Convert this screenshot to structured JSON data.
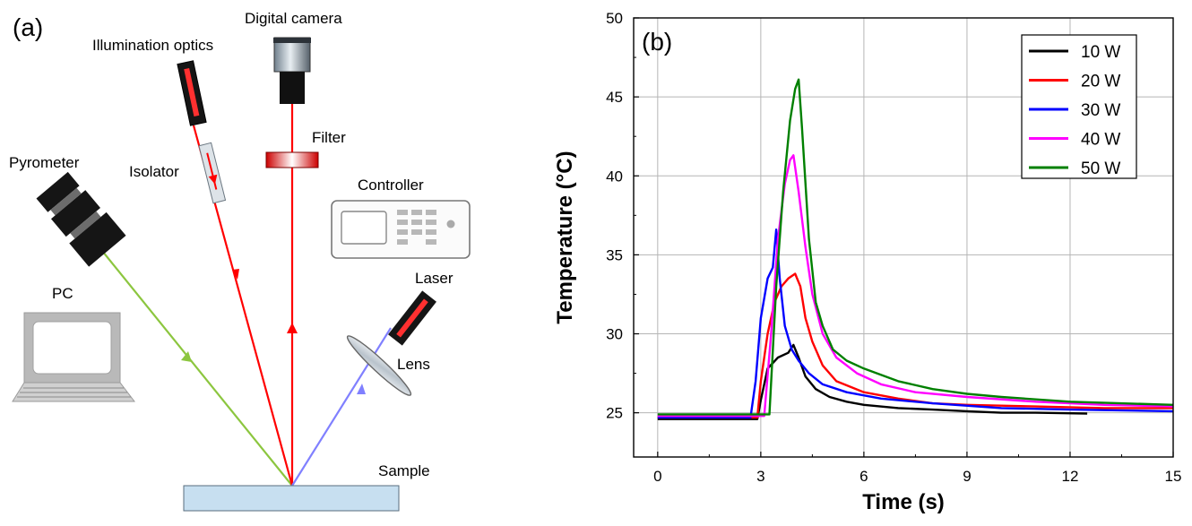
{
  "panel_a": {
    "label": "(a)",
    "components": {
      "digital_camera": "Digital camera",
      "illumination_optics": "Illumination optics",
      "filter": "Filter",
      "isolator": "Isolator",
      "pyrometer": "Pyrometer",
      "controller": "Controller",
      "laser": "Laser",
      "pc": "PC",
      "lens": "Lens",
      "sample": "Sample"
    },
    "colors": {
      "illumination_beam": "#ff0000",
      "camera_beam": "#ff0000",
      "pyrometer_beam": "#8cc63f",
      "laser_beam": "#8080ff",
      "sample_fill": "#c7dff0"
    }
  },
  "panel_b": {
    "label": "(b)"
  },
  "chart_data": {
    "type": "line",
    "xlabel": "Time (s)",
    "ylabel": "Temperature (°C)",
    "xlim": [
      -0.7,
      15
    ],
    "ylim": [
      22.2,
      50
    ],
    "xticks": [
      0,
      3,
      6,
      9,
      12,
      15
    ],
    "yticks": [
      25,
      30,
      35,
      40,
      45,
      50
    ],
    "grid": true,
    "legend_position": "top-right",
    "series": [
      {
        "name": "10 W",
        "color": "#000000",
        "x": [
          0,
          2.9,
          3.0,
          3.2,
          3.5,
          3.8,
          3.95,
          4.1,
          4.3,
          4.6,
          5.0,
          5.5,
          6.0,
          7.0,
          8.0,
          9.0,
          10.0,
          11.0,
          12.5
        ],
        "y": [
          24.6,
          24.6,
          25.8,
          27.8,
          28.5,
          28.8,
          29.3,
          28.5,
          27.3,
          26.5,
          26.0,
          25.7,
          25.5,
          25.3,
          25.2,
          25.1,
          25.0,
          25.0,
          24.95
        ]
      },
      {
        "name": "20 W",
        "color": "#ff0000",
        "x": [
          0,
          2.9,
          3.0,
          3.2,
          3.4,
          3.6,
          3.8,
          4.0,
          4.15,
          4.3,
          4.5,
          4.8,
          5.2,
          6.0,
          7.0,
          8.0,
          9.0,
          11.0,
          13.0,
          15.0
        ],
        "y": [
          24.7,
          24.7,
          27.0,
          30.0,
          32.0,
          33.0,
          33.5,
          33.8,
          33.0,
          31.0,
          29.5,
          28.0,
          27.0,
          26.3,
          25.9,
          25.6,
          25.5,
          25.4,
          25.3,
          25.3
        ]
      },
      {
        "name": "30 W",
        "color": "#0000ff",
        "x": [
          0,
          2.7,
          2.85,
          3.0,
          3.2,
          3.35,
          3.45,
          3.55,
          3.7,
          3.9,
          4.1,
          4.4,
          4.8,
          5.5,
          6.5,
          8.0,
          10.0,
          12.0,
          15.0
        ],
        "y": [
          24.7,
          24.7,
          27.0,
          31.0,
          33.5,
          34.2,
          36.6,
          33.5,
          30.5,
          29.0,
          28.3,
          27.5,
          26.8,
          26.3,
          25.9,
          25.6,
          25.3,
          25.2,
          25.1
        ]
      },
      {
        "name": "40 W",
        "color": "#ff00ff",
        "x": [
          0,
          3.1,
          3.3,
          3.5,
          3.7,
          3.85,
          3.95,
          4.1,
          4.3,
          4.5,
          4.8,
          5.2,
          5.8,
          6.5,
          7.5,
          9.0,
          11.0,
          13.0,
          15.0
        ],
        "y": [
          24.8,
          24.8,
          30.0,
          36.0,
          39.5,
          41.0,
          41.3,
          39.0,
          35.5,
          32.5,
          30.0,
          28.5,
          27.5,
          26.8,
          26.3,
          26.0,
          25.7,
          25.5,
          25.4
        ]
      },
      {
        "name": "50 W",
        "color": "#008000",
        "x": [
          0,
          3.25,
          3.45,
          3.65,
          3.85,
          4.0,
          4.1,
          4.2,
          4.4,
          4.6,
          4.8,
          5.1,
          5.5,
          6.0,
          7.0,
          8.0,
          9.0,
          10.0,
          12.0,
          15.0
        ],
        "y": [
          24.9,
          24.9,
          33.0,
          39.0,
          43.5,
          45.5,
          46.1,
          43.0,
          36.0,
          32.0,
          30.5,
          29.0,
          28.3,
          27.8,
          27.0,
          26.5,
          26.2,
          26.0,
          25.7,
          25.5
        ]
      }
    ]
  }
}
